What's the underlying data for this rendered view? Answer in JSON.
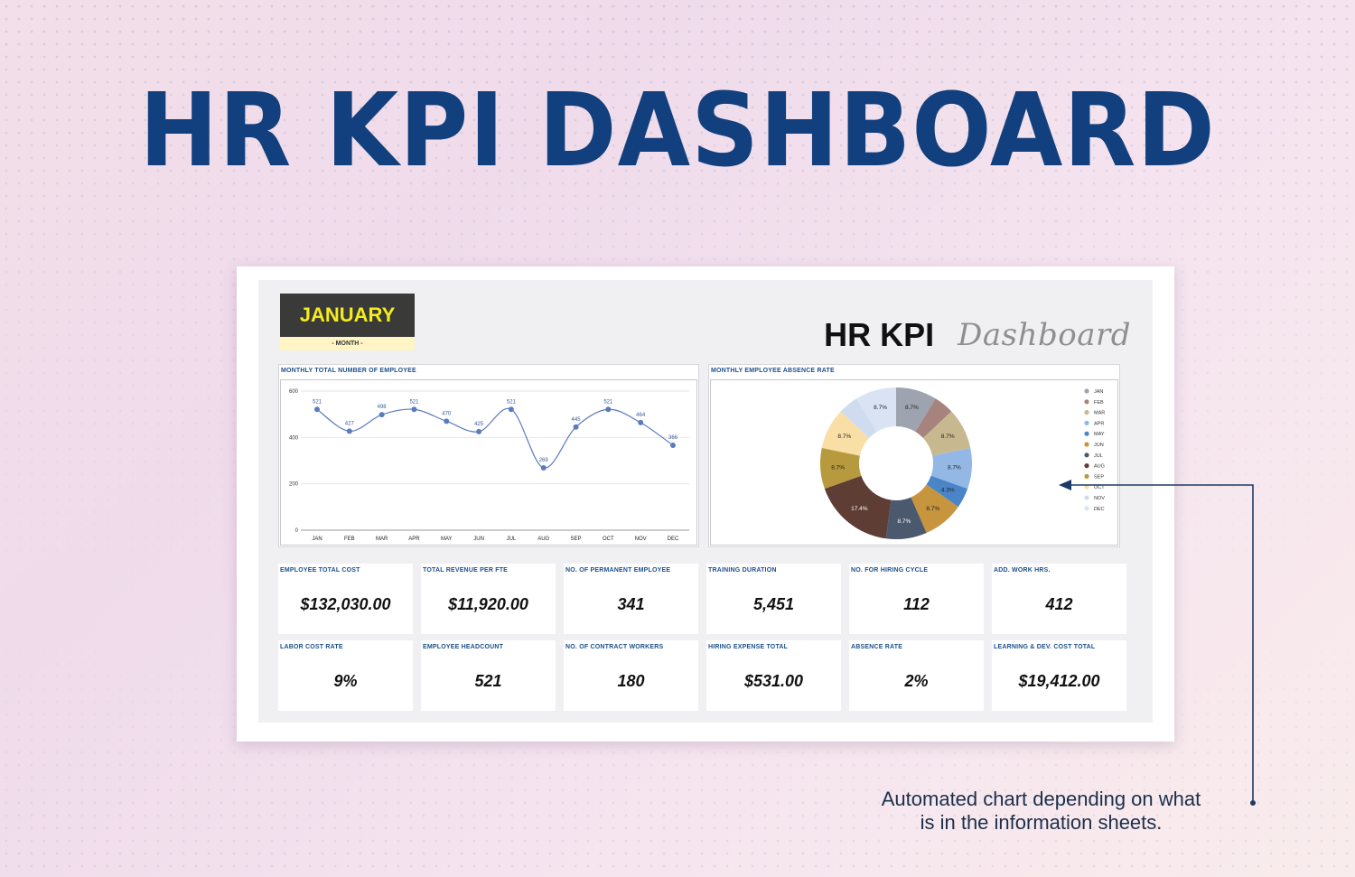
{
  "hero": {
    "title": "HR KPI DASHBOARD"
  },
  "month": {
    "name": "JANUARY",
    "sub": "- MONTH -"
  },
  "inner_title": {
    "main": "HR KPI",
    "script": "Dashboard"
  },
  "colors": {
    "title_blue": "#12407e",
    "label_blue": "#1d4f8c",
    "line": "#5b7bbf",
    "month_bg": "#3a3a38",
    "month_text": "#f5ec1d"
  },
  "line_chart": {
    "label": "MONTHLY TOTAL NUMBER OF EMPLOYEE"
  },
  "pie_chart": {
    "label": "MONTHLY EMPLOYEE ABSENCE RATE"
  },
  "chart_data": [
    {
      "type": "line",
      "title": "MONTHLY TOTAL NUMBER OF EMPLOYEE",
      "categories": [
        "JAN",
        "FEB",
        "MAR",
        "APR",
        "MAY",
        "JUN",
        "JUL",
        "AUG",
        "SEP",
        "OCT",
        "NOV",
        "DEC"
      ],
      "values": [
        521,
        427,
        498,
        521,
        470,
        425,
        521,
        269,
        445,
        521,
        464,
        366
      ],
      "yticks": [
        0,
        200,
        400,
        600
      ],
      "ylim": [
        0,
        600
      ],
      "grid": true,
      "legend": "none"
    },
    {
      "type": "pie",
      "title": "MONTHLY EMPLOYEE ABSENCE RATE",
      "categories": [
        "JAN",
        "FEB",
        "MAR",
        "APR",
        "MAY",
        "JUN",
        "JUL",
        "AUG",
        "SEP",
        "OCT",
        "NOV",
        "DEC"
      ],
      "values": [
        8.7,
        4.3,
        8.7,
        8.7,
        4.3,
        8.7,
        8.7,
        17.4,
        8.7,
        8.7,
        4.3,
        8.7
      ],
      "labels": [
        "8.7%",
        "",
        "8.7%",
        "8.7%",
        "4.3%",
        "8.7%",
        "8.7%",
        "17.4%",
        "8.7%",
        "8.7%",
        "",
        "8.7%"
      ],
      "colors": [
        "#9ea3b0",
        "#a6847d",
        "#c8b88f",
        "#94b8e6",
        "#4a85c8",
        "#c7953d",
        "#4b596e",
        "#5e3d35",
        "#b89a3e",
        "#f9dfa6",
        "#cfdcef",
        "#d9e3f4"
      ],
      "donut": true,
      "legend": "right"
    }
  ],
  "kpis": [
    {
      "label": "EMPLOYEE TOTAL COST",
      "value": "$132,030.00"
    },
    {
      "label": "TOTAL REVENUE PER FTE",
      "value": "$11,920.00"
    },
    {
      "label": "NO. OF PERMANENT EMPLOYEE",
      "value": "341"
    },
    {
      "label": "TRAINING DURATION",
      "value": "5,451"
    },
    {
      "label": "NO. FOR HIRING CYCLE",
      "value": "112"
    },
    {
      "label": "ADD. WORK HRS.",
      "value": "412"
    },
    {
      "label": "LABOR COST RATE",
      "value": "9%"
    },
    {
      "label": "EMPLOYEE HEADCOUNT",
      "value": "521"
    },
    {
      "label": "NO. OF CONTRACT WORKERS",
      "value": "180"
    },
    {
      "label": "HIRING EXPENSE TOTAL",
      "value": "$531.00"
    },
    {
      "label": "ABSENCE RATE",
      "value": "2%"
    },
    {
      "label": "LEARNING & DEV. COST TOTAL",
      "value": "$19,412.00"
    }
  ],
  "annotation": {
    "line1": "Automated chart depending on what",
    "line2": "is in the information sheets."
  }
}
